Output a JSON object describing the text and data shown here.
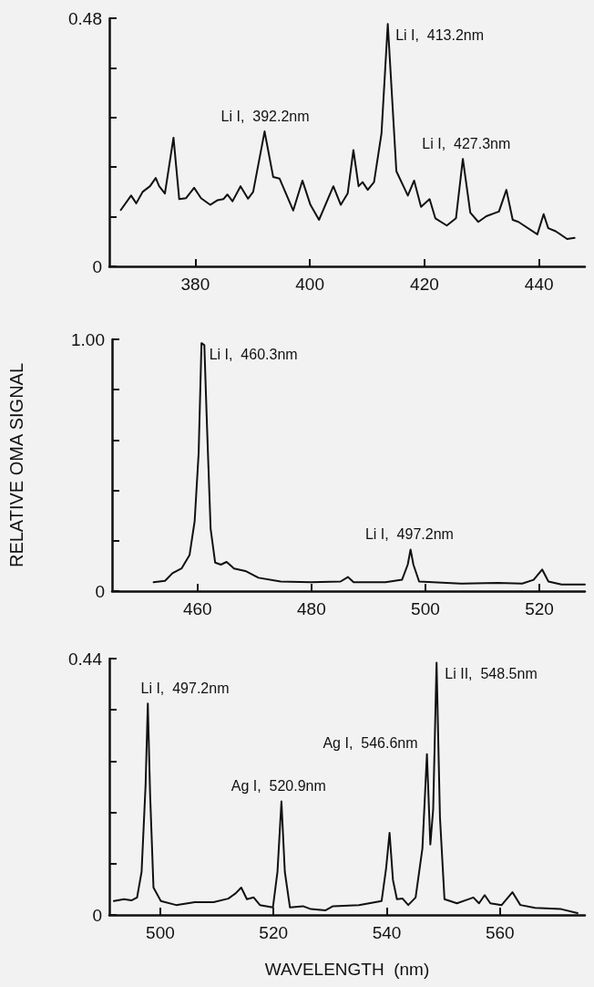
{
  "chart_data": [
    {
      "type": "line",
      "xlim": [
        365,
        448
      ],
      "xticks": [
        380,
        400,
        420,
        440
      ],
      "ylim": [
        0,
        0.48
      ],
      "yticks": [
        0,
        {
          "value": 0.096,
          "label": null
        },
        {
          "value": 0.192,
          "label": null
        },
        {
          "value": 0.288,
          "label": null
        },
        {
          "value": 0.384,
          "label": null
        },
        0.48
      ],
      "grid": false,
      "color": "#111111",
      "x": [
        367.0,
        368.8,
        369.7,
        370.8,
        372.1,
        373.1,
        373.7,
        374.7,
        376.2,
        377.2,
        378.4,
        379.8,
        381.0,
        382.6,
        383.9,
        384.9,
        385.6,
        386.5,
        387.9,
        389.2,
        390.1,
        392.1,
        393.6,
        394.7,
        397.1,
        398.7,
        400.1,
        401.6,
        404.1,
        405.4,
        406.6,
        407.6,
        408.5,
        409.2,
        410.1,
        411.2,
        412.5,
        413.6,
        415.1,
        417.1,
        418.2,
        419.4,
        420.9,
        421.9,
        423.9,
        425.5,
        426.7,
        428.0,
        429.4,
        430.8,
        433.0,
        434.3,
        435.4,
        436.4,
        439.7,
        440.8,
        441.6,
        442.9,
        444.9,
        446.2
      ],
      "values": [
        0.109,
        0.137,
        0.122,
        0.144,
        0.155,
        0.171,
        0.155,
        0.141,
        0.249,
        0.13,
        0.132,
        0.152,
        0.132,
        0.119,
        0.128,
        0.13,
        0.139,
        0.126,
        0.155,
        0.131,
        0.144,
        0.261,
        0.173,
        0.17,
        0.108,
        0.166,
        0.119,
        0.09,
        0.155,
        0.119,
        0.141,
        0.225,
        0.155,
        0.163,
        0.148,
        0.163,
        0.257,
        0.469,
        0.184,
        0.137,
        0.166,
        0.115,
        0.13,
        0.093,
        0.079,
        0.093,
        0.208,
        0.104,
        0.086,
        0.097,
        0.106,
        0.148,
        0.09,
        0.086,
        0.062,
        0.101,
        0.074,
        0.068,
        0.053,
        0.055
      ],
      "annotations": [
        {
          "text": "Li I,  392.2nm",
          "x": 392.2,
          "y": 0.261
        },
        {
          "text": "Li I,  413.2nm",
          "x": 413.2,
          "y": 0.469
        },
        {
          "text": "Li I,  427.3nm",
          "x": 427.3,
          "y": 0.208
        }
      ]
    },
    {
      "type": "line",
      "ylabel": "RELATIVE OMA SIGNAL",
      "xlim": [
        445,
        528
      ],
      "xticks": [
        460,
        480,
        500,
        520
      ],
      "ylim": [
        0,
        1
      ],
      "yticks": [
        0,
        {
          "value": 0.2,
          "label": null
        },
        {
          "value": 0.4,
          "label": null
        },
        {
          "value": 0.6,
          "label": null
        },
        {
          "value": 0.8,
          "label": null
        },
        {
          "value": 1,
          "label": "1.00"
        }
      ],
      "grid": false,
      "color": "#111111",
      "x": [
        452.3,
        454.3,
        455.6,
        457.2,
        458.6,
        459.5,
        460.2,
        460.7,
        461.2,
        461.6,
        462.3,
        463.1,
        464.1,
        465.1,
        466.4,
        468.4,
        470.7,
        474.6,
        479.9,
        485.1,
        486.4,
        487.4,
        493.0,
        495.9,
        496.9,
        497.4,
        497.9,
        498.9,
        506.2,
        512.7,
        517.0,
        519.0,
        520.5,
        521.6,
        523.9,
        528.0
      ],
      "values": [
        0.035,
        0.041,
        0.071,
        0.09,
        0.143,
        0.278,
        0.549,
        0.985,
        0.977,
        0.699,
        0.248,
        0.113,
        0.105,
        0.116,
        0.09,
        0.08,
        0.053,
        0.038,
        0.035,
        0.038,
        0.056,
        0.035,
        0.035,
        0.045,
        0.105,
        0.165,
        0.105,
        0.038,
        0.03,
        0.033,
        0.03,
        0.045,
        0.086,
        0.038,
        0.026,
        0.026
      ],
      "annotations": [
        {
          "text": "Li I,  460.3nm",
          "x": 460.3,
          "y": 0.985
        },
        {
          "text": "Li I,  497.2nm",
          "x": 497.2,
          "y": 0.165
        }
      ]
    },
    {
      "type": "line",
      "xlabel": "WAVELENGTH  (nm)",
      "xlim": [
        491,
        575
      ],
      "xticks": [
        500,
        520,
        540,
        560
      ],
      "ylim": [
        0,
        0.44
      ],
      "yticks": [
        0,
        {
          "value": 0.088,
          "label": null
        },
        {
          "value": 0.176,
          "label": null
        },
        {
          "value": 0.264,
          "label": null
        },
        {
          "value": 0.352,
          "label": null
        },
        0.44
      ],
      "grid": false,
      "color": "#111111",
      "x": [
        491.8,
        493.6,
        494.9,
        495.9,
        496.7,
        497.4,
        497.8,
        498.2,
        498.8,
        500.1,
        502.8,
        506.1,
        509.4,
        512.0,
        513.3,
        514.3,
        515.3,
        516.5,
        517.6,
        519.9,
        520.7,
        521.4,
        522.0,
        522.9,
        525.2,
        526.6,
        529.2,
        530.5,
        535.1,
        539.1,
        539.9,
        540.5,
        541.1,
        541.8,
        542.8,
        543.8,
        545.1,
        546.3,
        547.1,
        547.7,
        548.2,
        548.8,
        549.4,
        550.2,
        552.4,
        555.3,
        556.3,
        557.3,
        558.3,
        560.3,
        562.2,
        563.6,
        566.2,
        570.8,
        573.7
      ],
      "values": [
        0.024,
        0.027,
        0.025,
        0.03,
        0.074,
        0.222,
        0.363,
        0.208,
        0.047,
        0.024,
        0.017,
        0.022,
        0.022,
        0.028,
        0.037,
        0.047,
        0.027,
        0.03,
        0.017,
        0.013,
        0.074,
        0.195,
        0.074,
        0.013,
        0.015,
        0.01,
        0.008,
        0.015,
        0.017,
        0.024,
        0.081,
        0.141,
        0.06,
        0.027,
        0.028,
        0.017,
        0.03,
        0.114,
        0.276,
        0.121,
        0.181,
        0.433,
        0.168,
        0.027,
        0.02,
        0.03,
        0.02,
        0.034,
        0.02,
        0.017,
        0.039,
        0.017,
        0.012,
        0.01,
        0.003
      ],
      "annotations": [
        {
          "text": "Li I,  497.2nm",
          "x": 497.2,
          "y": 0.363
        },
        {
          "text": "Ag I,  520.9nm",
          "x": 520.9,
          "y": 0.195
        },
        {
          "text": "Ag I,  546.6nm",
          "x": 546.6,
          "y": 0.276
        },
        {
          "text": "Li II,  548.5nm",
          "x": 548.5,
          "y": 0.433
        }
      ]
    }
  ]
}
